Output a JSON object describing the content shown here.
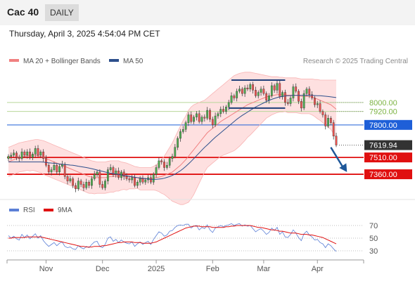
{
  "header": {
    "title": "Cac 40",
    "period": "DAILY"
  },
  "timestamp": "Thursday, April 3, 2025 4:54:04 PM CET",
  "legend": {
    "ma20": {
      "label": "MA 20 + Bollinger Bands",
      "color": "#f08080"
    },
    "ma50": {
      "label": "MA 50",
      "color": "#2c4f8c"
    },
    "copyright": "Research © 2025 Trading Central"
  },
  "rsi_legend": {
    "rsi": {
      "label": "RSI",
      "color": "#5b7fd6"
    },
    "ma9": {
      "label": "9MA",
      "color": "#e01010"
    }
  },
  "chart_data": [
    {
      "type": "candlestick",
      "ylim": [
        7160,
        8300
      ],
      "x_ticks": [
        {
          "label": "Nov",
          "index": 14
        },
        {
          "label": "Dec",
          "index": 35
        },
        {
          "label": "2025",
          "index": 55
        },
        {
          "label": "Feb",
          "index": 76
        },
        {
          "label": "Mar",
          "index": 95
        },
        {
          "label": "Apr",
          "index": 115
        }
      ],
      "closes": [
        7520,
        7530,
        7550,
        7510,
        7500,
        7560,
        7530,
        7560,
        7510,
        7540,
        7590,
        7530,
        7560,
        7500,
        7440,
        7380,
        7400,
        7440,
        7380,
        7430,
        7450,
        7340,
        7300,
        7320,
        7260,
        7230,
        7300,
        7270,
        7240,
        7290,
        7260,
        7320,
        7360,
        7380,
        7270,
        7240,
        7300,
        7400,
        7420,
        7360,
        7390,
        7330,
        7380,
        7340,
        7320,
        7310,
        7330,
        7260,
        7290,
        7320,
        7290,
        7310,
        7330,
        7290,
        7360,
        7420,
        7480,
        7470,
        7420,
        7440,
        7500,
        7520,
        7600,
        7680,
        7740,
        7760,
        7820,
        7890,
        7830,
        7870,
        7900,
        7830,
        7870,
        7860,
        7930,
        7850,
        7800,
        7880,
        7900,
        7940,
        7920,
        7960,
        8000,
        8060,
        8040,
        8100,
        8120,
        8080,
        8130,
        8120,
        8160,
        8110,
        8060,
        8090,
        8120,
        8080,
        8020,
        8060,
        8150,
        8110,
        8170,
        8050,
        8090,
        8000,
        7990,
        8040,
        8140,
        8100,
        8010,
        7950,
        8080,
        8120,
        8070,
        8040,
        7980,
        7990,
        7920,
        7890,
        7790,
        7860,
        7820,
        7700,
        7620
      ],
      "ma20": [
        7470,
        7480,
        7490,
        7500,
        7510,
        7515,
        7520,
        7525,
        7525,
        7530,
        7530,
        7525,
        7520,
        7510,
        7500,
        7490,
        7480,
        7470,
        7460,
        7450,
        7440,
        7430,
        7420,
        7410,
        7400,
        7390,
        7380,
        7370,
        7360,
        7350,
        7340,
        7335,
        7330,
        7330,
        7330,
        7330,
        7330,
        7335,
        7340,
        7340,
        7345,
        7345,
        7345,
        7345,
        7340,
        7340,
        7335,
        7330,
        7330,
        7320,
        7320,
        7320,
        7320,
        7320,
        7325,
        7330,
        7335,
        7340,
        7350,
        7360,
        7370,
        7380,
        7400,
        7420,
        7440,
        7465,
        7490,
        7520,
        7550,
        7580,
        7610,
        7640,
        7670,
        7700,
        7730,
        7750,
        7770,
        7790,
        7810,
        7830,
        7845,
        7860,
        7875,
        7890,
        7905,
        7920,
        7935,
        7950,
        7965,
        7980,
        7990,
        8000,
        8010,
        8020,
        8030,
        8040,
        8050,
        8055,
        8060,
        8065,
        8070,
        8070,
        8070,
        8070,
        8065,
        8065,
        8065,
        8065,
        8060,
        8055,
        8055,
        8055,
        8055,
        8050,
        8040,
        8030,
        8020,
        8010,
        8000,
        7990,
        7980,
        7960,
        7940
      ],
      "bb_upper": [
        7600,
        7610,
        7620,
        7630,
        7640,
        7645,
        7650,
        7655,
        7660,
        7665,
        7670,
        7670,
        7665,
        7660,
        7650,
        7640,
        7630,
        7620,
        7610,
        7600,
        7590,
        7580,
        7570,
        7560,
        7550,
        7540,
        7530,
        7520,
        7510,
        7500,
        7490,
        7480,
        7475,
        7470,
        7470,
        7470,
        7470,
        7475,
        7480,
        7480,
        7480,
        7480,
        7470,
        7465,
        7460,
        7450,
        7440,
        7430,
        7425,
        7420,
        7420,
        7420,
        7420,
        7420,
        7430,
        7445,
        7465,
        7490,
        7520,
        7560,
        7600,
        7640,
        7690,
        7740,
        7790,
        7840,
        7880,
        7930,
        7960,
        7980,
        7990,
        8000,
        8010,
        8020,
        8040,
        8060,
        8080,
        8100,
        8120,
        8140,
        8160,
        8180,
        8200,
        8220,
        8240,
        8250,
        8260,
        8265,
        8270,
        8270,
        8270,
        8265,
        8260,
        8255,
        8250,
        8245,
        8240,
        8235,
        8230,
        8230,
        8230,
        8225,
        8225,
        8220,
        8220,
        8220,
        8220,
        8220,
        8215,
        8210,
        8210,
        8210,
        8210,
        8210,
        8205,
        8205,
        8200,
        8200,
        8200,
        8200,
        8200,
        8200,
        8200
      ],
      "bb_lower": [
        7340,
        7350,
        7360,
        7370,
        7380,
        7385,
        7390,
        7395,
        7390,
        7395,
        7390,
        7380,
        7375,
        7360,
        7350,
        7340,
        7330,
        7320,
        7310,
        7300,
        7290,
        7280,
        7270,
        7260,
        7250,
        7240,
        7230,
        7220,
        7210,
        7200,
        7190,
        7190,
        7185,
        7190,
        7190,
        7190,
        7190,
        7195,
        7200,
        7200,
        7210,
        7210,
        7220,
        7225,
        7220,
        7230,
        7230,
        7230,
        7235,
        7220,
        7220,
        7220,
        7220,
        7220,
        7220,
        7215,
        7205,
        7190,
        7180,
        7160,
        7140,
        7120,
        7110,
        7100,
        7090,
        7090,
        7100,
        7110,
        7140,
        7180,
        7230,
        7280,
        7330,
        7380,
        7420,
        7440,
        7460,
        7480,
        7500,
        7520,
        7530,
        7540,
        7550,
        7560,
        7570,
        7590,
        7610,
        7635,
        7660,
        7690,
        7710,
        7735,
        7760,
        7785,
        7810,
        7835,
        7860,
        7875,
        7890,
        7900,
        7910,
        7915,
        7915,
        7920,
        7910,
        7910,
        7910,
        7910,
        7905,
        7900,
        7900,
        7900,
        7900,
        7890,
        7875,
        7855,
        7840,
        7820,
        7800,
        7780,
        7760,
        7720,
        7680
      ],
      "ma50": [
        7470,
        7470,
        7470,
        7470,
        7470,
        7470,
        7470,
        7470,
        7470,
        7470,
        7470,
        7470,
        7470,
        7468,
        7465,
        7462,
        7460,
        7458,
        7455,
        7452,
        7450,
        7447,
        7445,
        7442,
        7440,
        7436,
        7432,
        7428,
        7424,
        7420,
        7415,
        7410,
        7404,
        7398,
        7392,
        7386,
        7380,
        7375,
        7370,
        7366,
        7362,
        7358,
        7354,
        7350,
        7346,
        7342,
        7338,
        7334,
        7330,
        7327,
        7324,
        7321,
        7318,
        7315,
        7314,
        7315,
        7317,
        7320,
        7325,
        7332,
        7340,
        7350,
        7362,
        7376,
        7392,
        7410,
        7430,
        7452,
        7475,
        7500,
        7525,
        7550,
        7575,
        7600,
        7622,
        7645,
        7668,
        7690,
        7710,
        7730,
        7750,
        7770,
        7790,
        7810,
        7830,
        7850,
        7868,
        7885,
        7900,
        7915,
        7930,
        7945,
        7960,
        7972,
        7984,
        7996,
        8008,
        8018,
        8028,
        8036,
        8044,
        8050,
        8055,
        8058,
        8060,
        8062,
        8063,
        8064,
        8064,
        8064,
        8064,
        8064,
        8064,
        8063,
        8062,
        8061,
        8060,
        8058,
        8056,
        8053,
        8050,
        8047,
        8044
      ],
      "levels": [
        {
          "label": "8000.00",
          "value": 8000,
          "kind": "resistance",
          "color": "#7cb342"
        },
        {
          "label": "7920.00",
          "value": 7920,
          "kind": "resistance",
          "color": "#7cb342"
        },
        {
          "label": "7800.00",
          "value": 7800,
          "kind": "pivot",
          "color": "#1e5fd8"
        },
        {
          "label": "7619.94",
          "value": 7619.94,
          "kind": "last-price",
          "color": "#333333"
        },
        {
          "label": "7510.00",
          "value": 7510,
          "kind": "support",
          "color": "#e01010"
        },
        {
          "label": "7360.00",
          "value": 7360,
          "kind": "support",
          "color": "#e01010"
        }
      ],
      "range_lines": [
        {
          "value": 8200,
          "start_index": 83,
          "end_index": 103
        },
        {
          "value": 7950,
          "start_index": 82,
          "end_index": 103
        }
      ],
      "arrow": {
        "from_index": 120,
        "from_value": 7600,
        "to_index": 126,
        "to_value": 7380,
        "color": "#1e5799"
      }
    },
    {
      "type": "line",
      "title": "RSI",
      "ylim": [
        20,
        80
      ],
      "y_ticks": [
        70,
        50,
        30
      ],
      "series": [
        {
          "name": "RSI",
          "color": "#5b7fd6",
          "values": [
            54,
            50,
            53,
            49,
            47,
            56,
            51,
            55,
            49,
            53,
            57,
            50,
            54,
            46,
            41,
            37,
            40,
            43,
            38,
            42,
            44,
            37,
            35,
            36,
            33,
            32,
            38,
            35,
            33,
            37,
            35,
            40,
            44,
            45,
            37,
            35,
            40,
            50,
            52,
            45,
            48,
            43,
            47,
            44,
            42,
            41,
            44,
            37,
            41,
            44,
            40,
            43,
            45,
            40,
            48,
            54,
            60,
            58,
            53,
            55,
            61,
            62,
            67,
            70,
            71,
            70,
            72,
            72,
            66,
            69,
            70,
            63,
            67,
            65,
            71,
            63,
            59,
            66,
            68,
            70,
            68,
            70,
            71,
            73,
            70,
            72,
            73,
            69,
            71,
            69,
            70,
            65,
            60,
            63,
            65,
            61,
            56,
            59,
            66,
            62,
            67,
            56,
            60,
            52,
            51,
            56,
            63,
            58,
            51,
            46,
            57,
            61,
            55,
            52,
            47,
            48,
            43,
            41,
            35,
            41,
            38,
            33,
            29
          ]
        },
        {
          "name": "9MA",
          "color": "#e01010",
          "values": [
            50,
            50,
            51,
            51,
            51,
            51,
            51,
            52,
            52,
            52,
            52,
            52,
            52,
            51,
            50,
            49,
            48,
            47,
            46,
            45,
            44,
            43,
            42,
            41,
            40,
            39,
            38,
            37,
            37,
            36,
            36,
            36,
            37,
            37,
            37,
            38,
            38,
            39,
            40,
            41,
            42,
            43,
            43,
            44,
            44,
            44,
            44,
            43,
            43,
            43,
            42,
            42,
            42,
            42,
            43,
            44,
            46,
            48,
            50,
            52,
            54,
            56,
            58,
            60,
            62,
            64,
            66,
            67,
            68,
            69,
            69,
            69,
            68,
            68,
            68,
            68,
            67,
            67,
            67,
            67,
            67,
            68,
            68,
            69,
            69,
            70,
            70,
            70,
            70,
            70,
            70,
            69,
            68,
            67,
            67,
            66,
            65,
            64,
            63,
            63,
            62,
            61,
            61,
            60,
            59,
            58,
            58,
            58,
            57,
            56,
            56,
            56,
            55,
            55,
            54,
            53,
            52,
            51,
            49,
            47,
            45,
            43,
            41
          ]
        }
      ]
    }
  ]
}
